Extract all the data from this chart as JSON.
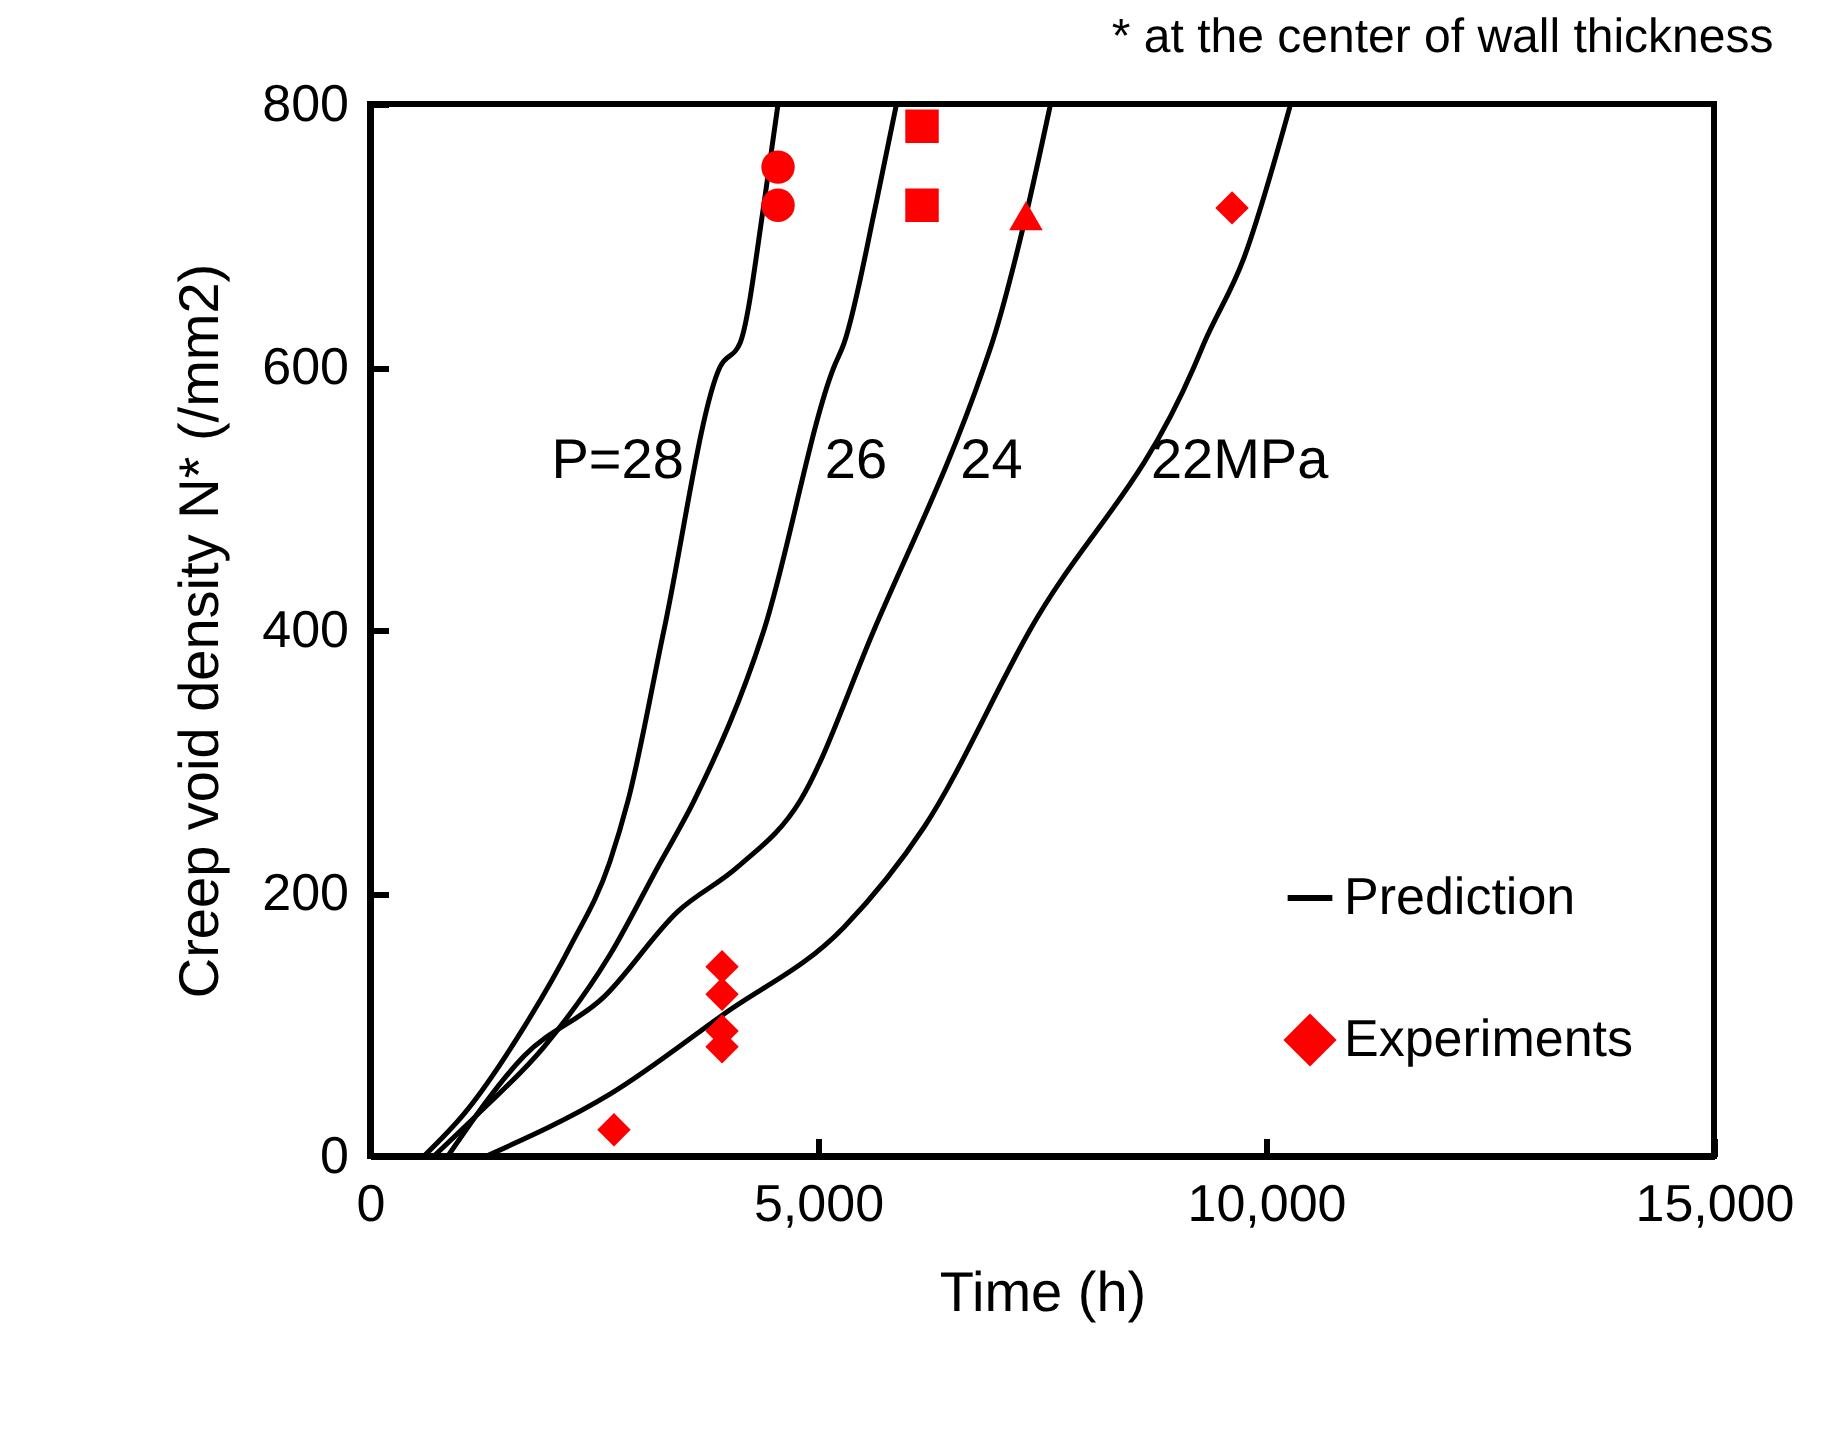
{
  "chart_data": {
    "type": "line",
    "xlabel": "Time (h)",
    "ylabel": "Creep void density N*  (/mm2)",
    "xlim": [
      0,
      15000
    ],
    "xticks": [
      {
        "value": 0,
        "label": "0"
      },
      {
        "value": 5000,
        "label": "5,000"
      },
      {
        "value": 10000,
        "label": "10,000"
      },
      {
        "value": 15000,
        "label": "15,000"
      }
    ],
    "ylim": [
      0,
      800
    ],
    "yticks": [
      0,
      200,
      400,
      600,
      800
    ],
    "grid": false,
    "legend": "bottom right",
    "annotations": [
      "* at the center of wall thickness",
      "P=28",
      "26",
      "24",
      "22MPa"
    ],
    "series": [
      {
        "name": "Prediction",
        "color": "#000000",
        "line_style": "solid",
        "x": [
          603,
          1049,
          1719,
          2232,
          2678,
          2879,
          3281,
          3906,
          4129,
          4397,
          4554
        ],
        "values": [
          0,
          32,
          98,
          159,
          224,
          270,
          400,
          600,
          618,
          724,
          800
        ]
      },
      {
        "color": "#000000",
        "line_style": "solid",
        "x": [
          714,
          1205,
          1942,
          2678,
          3214,
          3616,
          4397,
          5178,
          5290,
          5647,
          5870
        ],
        "values": [
          0,
          32,
          83,
          153,
          220,
          270,
          400,
          600,
          618,
          724,
          798
        ]
      },
      {
        "color": "#000000",
        "line_style": "solid",
        "x": [
          870,
          1719,
          2611,
          3437,
          4107,
          4799,
          5625,
          6852,
          6942,
          7299,
          7589
        ],
        "values": [
          0,
          76,
          121,
          186,
          220,
          270,
          400,
          600,
          618,
          709,
          798
        ]
      },
      {
        "color": "#000000",
        "line_style": "solid",
        "x": [
          1300,
          2678,
          3951,
          5290,
          6183,
          7366,
          9196,
          9308,
          9754,
          10267
        ],
        "values": [
          0,
          47,
          108,
          174,
          250,
          400,
          600,
          618,
          683,
          798
        ]
      },
      {
        "name": "Experiments",
        "type": "scatter",
        "color": "#ff0000",
        "marker": "circle",
        "x": [
          4554,
          4554
        ],
        "values": [
          752,
          723
        ]
      },
      {
        "type": "scatter",
        "color": "#ff0000",
        "marker": "triangle",
        "x": [
          7321
        ],
        "values": [
          715
        ]
      },
      {
        "type": "scatter",
        "color": "#ff0000",
        "marker": "square",
        "x": [
          6161,
          6161
        ],
        "values": [
          783,
          723
        ]
      },
      {
        "type": "scatter",
        "color": "#ff0000",
        "marker": "diamond",
        "x": [
          9621,
          3929,
          3929,
          3929,
          3929,
          2723
        ],
        "values": [
          721,
          144,
          123,
          95,
          83,
          20
        ]
      }
    ]
  }
}
